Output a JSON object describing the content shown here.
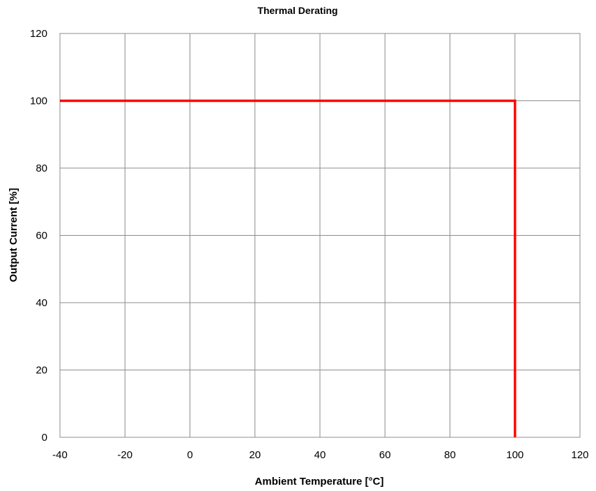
{
  "chart_data": {
    "type": "line",
    "title": "Thermal Derating",
    "xlabel": "Ambient Temperature [°C]",
    "ylabel": "Output Current [%]",
    "xlim": [
      -40,
      120
    ],
    "ylim": [
      0,
      120
    ],
    "xticks": [
      -40,
      -20,
      0,
      20,
      40,
      60,
      80,
      100,
      120
    ],
    "yticks": [
      0,
      20,
      40,
      60,
      80,
      100,
      120
    ],
    "grid": true,
    "series": [
      {
        "color": "#ff0000",
        "x": [
          -40,
          100,
          100
        ],
        "y": [
          100,
          100,
          0
        ]
      }
    ]
  }
}
